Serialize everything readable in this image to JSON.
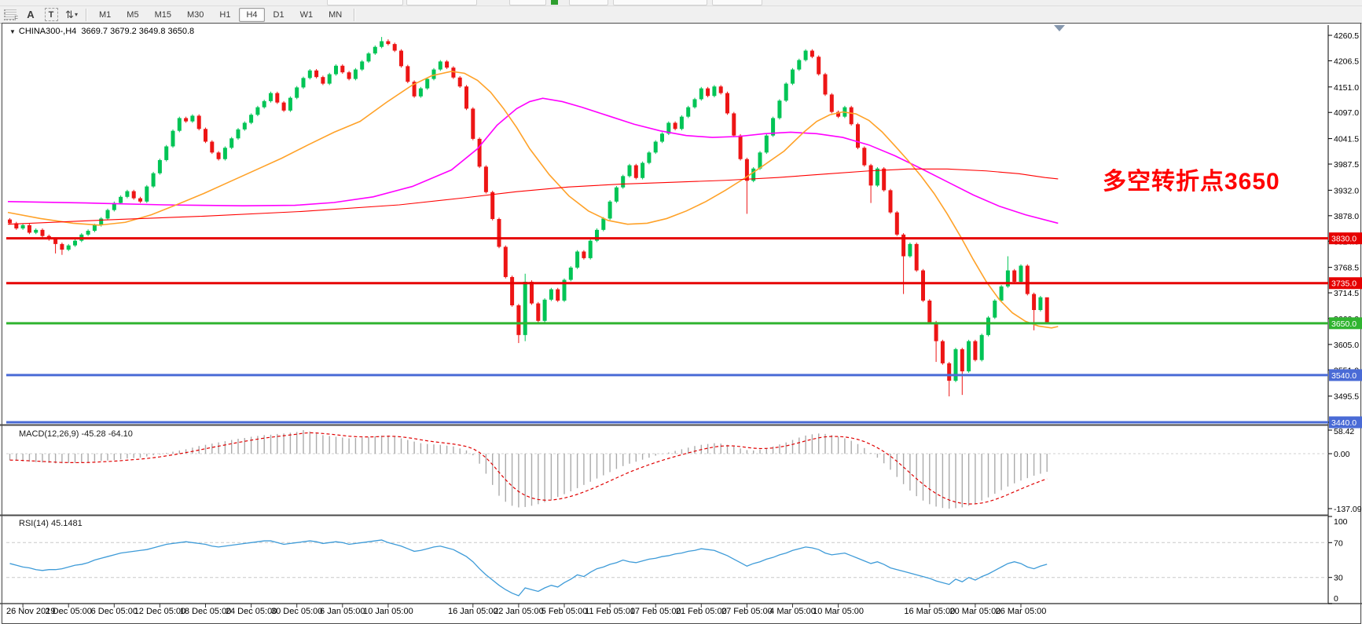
{
  "toolbar": {
    "icons": [
      {
        "name": "indicator-grid-icon",
        "glyph": "F"
      },
      {
        "name": "text-label-icon",
        "glyph": "A"
      },
      {
        "name": "text-box-icon",
        "glyph": "T"
      },
      {
        "name": "arrange-arrows-icon",
        "glyph": "⇅"
      },
      {
        "name": "dropdown-caret-icon",
        "glyph": "▾"
      }
    ],
    "timeframes": [
      {
        "label": "M1"
      },
      {
        "label": "M5"
      },
      {
        "label": "M15"
      },
      {
        "label": "M30"
      },
      {
        "label": "H1"
      },
      {
        "label": "H4"
      },
      {
        "label": "D1"
      },
      {
        "label": "W1"
      },
      {
        "label": "MN"
      }
    ],
    "selected_timeframe": "H4"
  },
  "chart": {
    "collapse_icon": "▼",
    "symbol_period": "CHINA300-,H4",
    "ohlc_text": "3669.7 3679.2 3649.8 3650.8"
  },
  "annotation": {
    "text": "多空转折点3650",
    "color": "#FF0000"
  },
  "macd": {
    "label_full": "MACD(12,26,9) -45.28 -64.10",
    "name": "MACD(12,26,9)",
    "value": "-45.28",
    "signal": "-64.10"
  },
  "rsi": {
    "label_full": "RSI(14) 45.1481",
    "name": "RSI(14)",
    "value": "45.1481"
  },
  "chart_data": [
    {
      "type": "candlestick",
      "title": "CHINA300-,H4",
      "ylabel": "price",
      "ylim": [
        3440.0,
        4260.5
      ],
      "grid": false,
      "colors": {
        "bull": "#00C455",
        "bear": "#ED1515"
      },
      "y_ticks": [
        4260.5,
        4206.5,
        4151.0,
        4097.0,
        4041.5,
        3987.5,
        3932.0,
        3878.0,
        3824.0,
        3768.5,
        3714.5,
        3660.0,
        3605.0,
        3551.0,
        3495.5,
        3440.0
      ],
      "x_ticks": [
        {
          "text": "26 Nov 2019",
          "bar": 2
        },
        {
          "text": "2 Dec 05:00",
          "bar": 9
        },
        {
          "text": "6 Dec 05:00",
          "bar": 16
        },
        {
          "text": "12 Dec 05:00",
          "bar": 23
        },
        {
          "text": "18 Dec 05:00",
          "bar": 30
        },
        {
          "text": "24 Dec 05:00",
          "bar": 37
        },
        {
          "text": "30 Dec 05:00",
          "bar": 44
        },
        {
          "text": "6 Jan 05:00",
          "bar": 51
        },
        {
          "text": "10 Jan 05:00",
          "bar": 58
        },
        {
          "text": "16 Jan 05:00",
          "bar": 71
        },
        {
          "text": "22 Jan 05:00",
          "bar": 78
        },
        {
          "text": "5 Feb 05:00",
          "bar": 85
        },
        {
          "text": "11 Feb 05:00",
          "bar": 92
        },
        {
          "text": "17 Feb 05:00",
          "bar": 99
        },
        {
          "text": "21 Feb 05:00",
          "bar": 106
        },
        {
          "text": "27 Feb 05:00",
          "bar": 113
        },
        {
          "text": "4 Mar 05:00",
          "bar": 120
        },
        {
          "text": "10 Mar 05:00",
          "bar": 127
        },
        {
          "text": "16 Mar 05:00",
          "bar": 141
        },
        {
          "text": "20 Mar 05:00",
          "bar": 148
        },
        {
          "text": "26 Mar 05:00",
          "bar": 155
        }
      ],
      "open_first": 3870,
      "closes": [
        3862,
        3851,
        3858,
        3842,
        3848,
        3835,
        3828,
        3818,
        3806,
        3815,
        3825,
        3838,
        3846,
        3858,
        3872,
        3890,
        3905,
        3918,
        3930,
        3915,
        3908,
        3940,
        3968,
        3996,
        4025,
        4058,
        4085,
        4078,
        4090,
        4062,
        4035,
        4012,
        3998,
        4022,
        4042,
        4061,
        4075,
        4092,
        4108,
        4121,
        4138,
        4118,
        4101,
        4128,
        4150,
        4170,
        4186,
        4172,
        4158,
        4178,
        4196,
        4182,
        4168,
        4188,
        4205,
        4222,
        4236,
        4248,
        4242,
        4228,
        4195,
        4162,
        4131,
        4148,
        4168,
        4188,
        4205,
        4192,
        4171,
        4152,
        4105,
        4041,
        3982,
        3928,
        3871,
        3812,
        3748,
        3688,
        3625,
        3738,
        3692,
        3655,
        3700,
        3722,
        3698,
        3742,
        3768,
        3802,
        3788,
        3825,
        3848,
        3872,
        3908,
        3938,
        3962,
        3985,
        3958,
        3990,
        4012,
        4035,
        4052,
        4075,
        4062,
        4088,
        4108,
        4125,
        4148,
        4132,
        4152,
        4138,
        4095,
        4048,
        3998,
        3952,
        3978,
        4012,
        4048,
        4085,
        4122,
        4158,
        4188,
        4208,
        4228,
        4215,
        4178,
        4135,
        4098,
        4088,
        4108,
        4072,
        4022,
        3985,
        3942,
        3978,
        3932,
        3885,
        3838,
        3792,
        3818,
        3762,
        3698,
        3652,
        3612,
        3565,
        3528,
        3595,
        3548,
        3612,
        3572,
        3625,
        3662,
        3698,
        3728,
        3762,
        3738,
        3772,
        3712,
        3678,
        3705,
        3650.8
      ],
      "low_overrides": {
        "7": 3798,
        "8": 3795,
        "78": 3608,
        "79": 3612,
        "113": 3882,
        "132": 3905,
        "137": 3712,
        "142": 3568,
        "144": 3495,
        "146": 3498,
        "157": 3635,
        "159": 3649.8
      },
      "high_overrides": {
        "57": 4257,
        "58": 4252,
        "79": 3755,
        "153": 3792,
        "159": 3679.2
      },
      "levels": [
        {
          "price": 3830.0,
          "label": "3830.0",
          "color": "#E60000"
        },
        {
          "price": 3735.0,
          "label": "3735.0",
          "color": "#E60000"
        },
        {
          "price": 3650.0,
          "label": "3650.0",
          "color": "#30B430"
        },
        {
          "price": 3540.0,
          "label": "3540.0",
          "color": "#4A6BD6"
        },
        {
          "price": 3440.0,
          "label": "3440.0",
          "color": "#4A6BD6"
        }
      ],
      "overlays": [
        {
          "name": "ma-slow-magenta",
          "color": "#FF00FF",
          "width": 1.6,
          "points": [
            [
              0,
              3908
            ],
            [
              12,
              3905
            ],
            [
              24,
              3901
            ],
            [
              36,
              3899
            ],
            [
              44,
              3900
            ],
            [
              50,
              3906
            ],
            [
              56,
              3918
            ],
            [
              62,
              3940
            ],
            [
              68,
              3975
            ],
            [
              72,
              4020
            ],
            [
              75,
              4070
            ],
            [
              78,
              4105
            ],
            [
              80,
              4120
            ],
            [
              82,
              4127
            ],
            [
              85,
              4120
            ],
            [
              88,
              4108
            ],
            [
              92,
              4090
            ],
            [
              96,
              4072
            ],
            [
              100,
              4058
            ],
            [
              104,
              4048
            ],
            [
              108,
              4044
            ],
            [
              112,
              4046
            ],
            [
              116,
              4052
            ],
            [
              120,
              4055
            ],
            [
              124,
              4052
            ],
            [
              128,
              4044
            ],
            [
              132,
              4028
            ],
            [
              136,
              4005
            ],
            [
              140,
              3978
            ],
            [
              144,
              3950
            ],
            [
              148,
              3922
            ],
            [
              152,
              3898
            ],
            [
              156,
              3880
            ],
            [
              161,
              3862
            ]
          ]
        },
        {
          "name": "ma-medium-orange",
          "color": "#FFA229",
          "width": 1.6,
          "points": [
            [
              0,
              3885
            ],
            [
              5,
              3872
            ],
            [
              10,
              3862
            ],
            [
              14,
              3858
            ],
            [
              18,
              3864
            ],
            [
              22,
              3880
            ],
            [
              26,
              3902
            ],
            [
              30,
              3925
            ],
            [
              34,
              3950
            ],
            [
              38,
              3975
            ],
            [
              42,
              4000
            ],
            [
              46,
              4028
            ],
            [
              50,
              4055
            ],
            [
              54,
              4078
            ],
            [
              58,
              4118
            ],
            [
              62,
              4155
            ],
            [
              65,
              4175
            ],
            [
              68,
              4184
            ],
            [
              70,
              4180
            ],
            [
              72,
              4165
            ],
            [
              74,
              4140
            ],
            [
              76,
              4105
            ],
            [
              78,
              4065
            ],
            [
              80,
              4020
            ],
            [
              83,
              3965
            ],
            [
              86,
              3920
            ],
            [
              89,
              3888
            ],
            [
              92,
              3868
            ],
            [
              95,
              3860
            ],
            [
              98,
              3862
            ],
            [
              101,
              3872
            ],
            [
              104,
              3888
            ],
            [
              107,
              3908
            ],
            [
              110,
              3932
            ],
            [
              113,
              3958
            ],
            [
              116,
              3986
            ],
            [
              119,
              4015
            ],
            [
              122,
              4055
            ],
            [
              124,
              4078
            ],
            [
              126,
              4092
            ],
            [
              128,
              4098
            ],
            [
              130,
              4094
            ],
            [
              132,
              4080
            ],
            [
              134,
              4056
            ],
            [
              136,
              4026
            ],
            [
              138,
              3995
            ],
            [
              140,
              3962
            ],
            [
              142,
              3925
            ],
            [
              144,
              3882
            ],
            [
              146,
              3835
            ],
            [
              148,
              3785
            ],
            [
              150,
              3738
            ],
            [
              152,
              3700
            ],
            [
              154,
              3672
            ],
            [
              156,
              3654
            ],
            [
              158,
              3644
            ],
            [
              160,
              3640
            ],
            [
              161,
              3643
            ]
          ]
        },
        {
          "name": "ma-long-red",
          "color": "#FF0000",
          "width": 1.1,
          "points": [
            [
              0,
              3860
            ],
            [
              15,
              3869
            ],
            [
              30,
              3877
            ],
            [
              45,
              3887
            ],
            [
              60,
              3901
            ],
            [
              70,
              3916
            ],
            [
              78,
              3929
            ],
            [
              86,
              3939
            ],
            [
              94,
              3945
            ],
            [
              102,
              3949
            ],
            [
              110,
              3953
            ],
            [
              118,
              3959
            ],
            [
              126,
              3967
            ],
            [
              132,
              3973
            ],
            [
              138,
              3977
            ],
            [
              144,
              3977
            ],
            [
              150,
              3973
            ],
            [
              155,
              3967
            ],
            [
              159,
              3959
            ],
            [
              161,
              3956
            ]
          ]
        }
      ]
    },
    {
      "type": "bar",
      "title": "MACD(12,26,9)",
      "ylim": [
        -137.09,
        58.42
      ],
      "y_ticks": [
        58.42,
        0.0,
        -137.09
      ],
      "colors": {
        "hist": "#ABABAB",
        "signal": "#E00000"
      },
      "signal_ema_alpha": 0.25,
      "values": [
        -16,
        -17,
        -19,
        -20,
        -21,
        -22,
        -23,
        -24,
        -24,
        -23,
        -23,
        -22,
        -21,
        -19,
        -18,
        -17,
        -16,
        -14,
        -12,
        -11,
        -10,
        -7,
        -4,
        -2,
        2,
        5,
        8,
        11,
        15,
        19,
        22,
        25,
        28,
        31,
        34,
        37,
        39,
        42,
        44,
        46,
        47,
        49,
        50,
        52,
        54,
        58.42,
        55,
        50,
        46,
        44,
        42,
        40,
        38,
        39,
        40,
        41,
        43,
        45,
        45,
        42,
        38,
        34,
        30,
        26,
        24,
        23,
        22,
        20,
        18,
        13,
        8,
        -4,
        -25,
        -50,
        -78,
        -105,
        -120,
        -130,
        -134,
        -133,
        -130,
        -126,
        -121,
        -115,
        -108,
        -101,
        -94,
        -86,
        -78,
        -70,
        -62,
        -54,
        -46,
        -38,
        -31,
        -25,
        -20,
        -15,
        -10,
        -5,
        -1,
        3,
        7,
        11,
        15,
        19,
        22,
        24,
        26,
        25,
        22,
        18,
        13,
        9,
        8,
        10,
        14,
        18,
        23,
        28,
        34,
        40,
        45,
        48,
        50,
        49,
        46,
        42,
        38,
        32,
        24,
        14,
        2,
        -10,
        -24,
        -40,
        -58,
        -76,
        -92,
        -106,
        -117,
        -126,
        -132,
        -135.5,
        -137.09,
        -136,
        -134,
        -130,
        -124,
        -117,
        -109,
        -100,
        -91,
        -82,
        -74,
        -67,
        -61,
        -55,
        -50,
        -45.28
      ]
    },
    {
      "type": "line",
      "title": "RSI(14)",
      "ylim": [
        0,
        100
      ],
      "y_ticks": [
        100,
        70,
        30,
        0
      ],
      "levels": [
        70,
        30
      ],
      "color": "#3E9BD8",
      "values": [
        46,
        44,
        42,
        41,
        39,
        38,
        39,
        39,
        40,
        42,
        44,
        45,
        47,
        50,
        52,
        54,
        56,
        58,
        59,
        60,
        61,
        62,
        64,
        66,
        68,
        69,
        70,
        71,
        70,
        69,
        68,
        66,
        65,
        66,
        67,
        68,
        69,
        70,
        71,
        72,
        72,
        70,
        68,
        69,
        70,
        71,
        72,
        71,
        69,
        70,
        71,
        70,
        68,
        69,
        70,
        71,
        72,
        73,
        70,
        68,
        66,
        63,
        60,
        61,
        63,
        65,
        66,
        64,
        62,
        58,
        54,
        48,
        40,
        33,
        27,
        21,
        16,
        12,
        9,
        18,
        16,
        14,
        18,
        21,
        19,
        24,
        28,
        33,
        31,
        36,
        40,
        42,
        45,
        47,
        50,
        48,
        47,
        49,
        51,
        52,
        54,
        55,
        57,
        58,
        60,
        61,
        63,
        62,
        61,
        58,
        55,
        51,
        47,
        43,
        46,
        48,
        51,
        53,
        56,
        58,
        61,
        63,
        65,
        64,
        62,
        58,
        56,
        57,
        58,
        55,
        52,
        49,
        46,
        48,
        45,
        41,
        39,
        37,
        35,
        33,
        31,
        29,
        26,
        24,
        22,
        28,
        25,
        30,
        27,
        31,
        34,
        38,
        42,
        46,
        48,
        46,
        42,
        40,
        43,
        45.15
      ]
    }
  ]
}
